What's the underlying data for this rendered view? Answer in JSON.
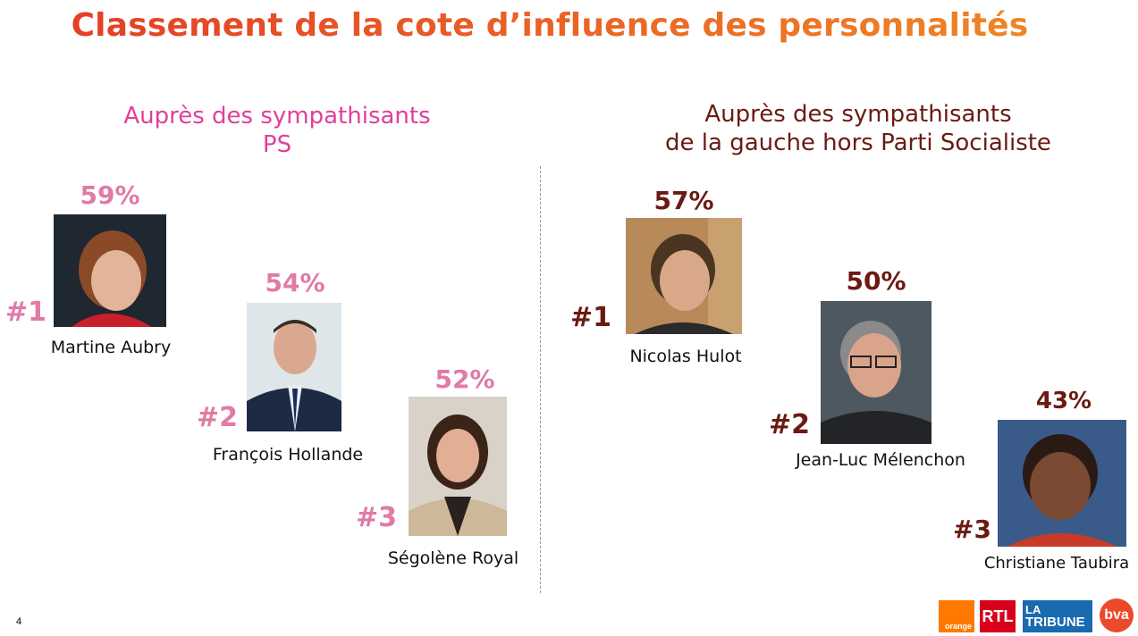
{
  "title": "Classement de la cote d’influence des personnalités",
  "left": {
    "subtitle_line1": "Auprès des sympathisants",
    "subtitle_line2": "PS",
    "people": [
      {
        "rank": "#1",
        "pct": "59%",
        "name": "Martine Aubry"
      },
      {
        "rank": "#2",
        "pct": "54%",
        "name": "François Hollande"
      },
      {
        "rank": "#3",
        "pct": "52%",
        "name": "Ségolène Royal"
      }
    ]
  },
  "right": {
    "subtitle_line1": "Auprès des sympathisants",
    "subtitle_line2": "de la gauche hors Parti Socialiste",
    "people": [
      {
        "rank": "#1",
        "pct": "57%",
        "name": "Nicolas Hulot"
      },
      {
        "rank": "#2",
        "pct": "50%",
        "name": "Jean-Luc Mélenchon"
      },
      {
        "rank": "#3",
        "pct": "43%",
        "name": "Christiane Taubira"
      }
    ]
  },
  "page_number": "4",
  "logos": {
    "orange": "orange",
    "rtl": "RTL",
    "latribune_1": "LA",
    "latribune_2": "TRIBUNE",
    "bva": "bva"
  },
  "colors": {
    "title": "#e8452a",
    "ps_accent": "#e07aa6",
    "ps_subtitle": "#e0409a",
    "gauche_accent": "#6b1a12"
  }
}
